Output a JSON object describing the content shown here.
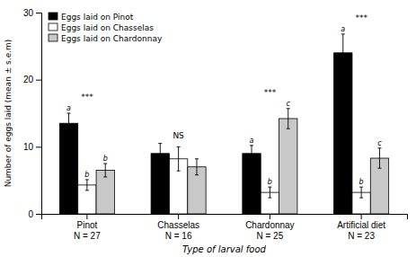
{
  "chart_data": {
    "type": "bar",
    "xlabel": "Type of larval food",
    "ylabel": "Number of eggs laid (mean ± s.e.m)",
    "categories": [
      "Pinot\nN = 27",
      "Chasselas\nN = 16",
      "Chardonnay\nN = 25",
      "Artificial diet\nN = 23"
    ],
    "series": [
      {
        "name": "Eggs laid on Pinot",
        "color": "#000000",
        "values": [
          13.5,
          9.0,
          9.0,
          24.0
        ],
        "errors": [
          1.5,
          1.5,
          1.2,
          2.8
        ],
        "annotations": [
          "a",
          null,
          "a",
          "a"
        ]
      },
      {
        "name": "Eggs laid on Chasselas",
        "color": "#ffffff",
        "values": [
          4.3,
          8.2,
          3.2,
          3.2
        ],
        "errors": [
          0.8,
          1.8,
          0.8,
          0.8
        ],
        "annotations": [
          "b",
          null,
          "b",
          "b"
        ]
      },
      {
        "name": "Eggs laid on Chardonnay",
        "color": "#c8c8c8",
        "values": [
          6.5,
          7.0,
          14.2,
          8.3
        ],
        "errors": [
          1.0,
          1.2,
          1.5,
          1.5
        ],
        "annotations": [
          "b",
          null,
          "c",
          "c"
        ]
      }
    ],
    "annotations": [
      "***",
      "NS",
      "***",
      "***"
    ],
    "ylim": [
      0,
      30
    ],
    "yticks": [
      0,
      10,
      20,
      30
    ],
    "grid": false,
    "legend": "upper left"
  }
}
